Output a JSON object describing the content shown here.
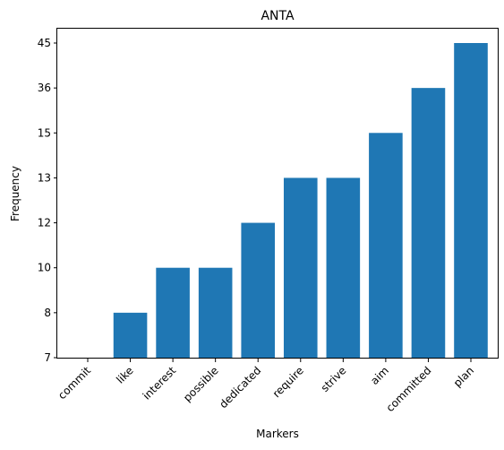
{
  "chart_data": {
    "type": "bar",
    "title": "ANTA",
    "xlabel": "Markers",
    "ylabel": "Frequency",
    "categories": [
      "commit",
      "like",
      "interest",
      "possible",
      "dedicated",
      "require",
      "strive",
      "aim",
      "committed",
      "plan"
    ],
    "values": [
      7,
      8,
      10,
      10,
      12,
      13,
      13,
      15,
      36,
      45
    ],
    "y_axis": {
      "scale": "categorical-ordinal",
      "ticks": [
        "7",
        "8",
        "10",
        "12",
        "13",
        "15",
        "36",
        "45"
      ]
    },
    "grid": false,
    "legend": "none",
    "bar_color": "#1f77b4"
  }
}
